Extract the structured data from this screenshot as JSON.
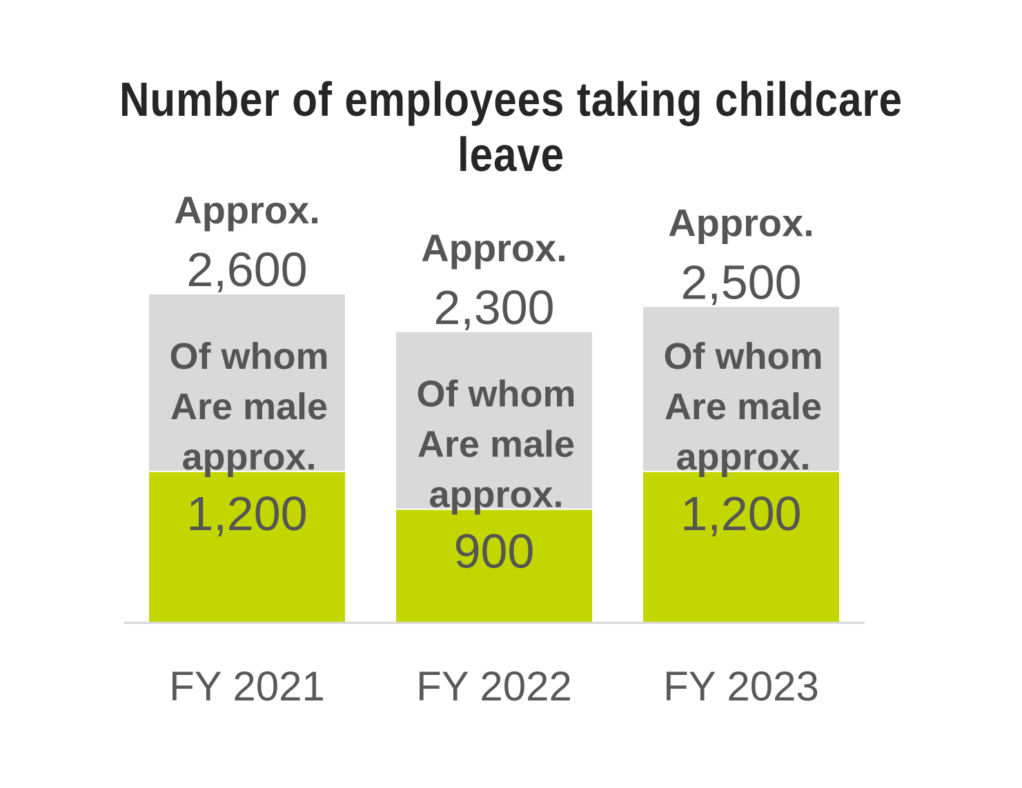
{
  "chart_data": {
    "type": "bar",
    "stacked": true,
    "title": "Number of employees taking childcare leave",
    "xlabel": "",
    "ylabel": "",
    "ylim": [
      0,
      2600
    ],
    "grid": false,
    "legend": "none",
    "categories": [
      "FY 2021",
      "FY 2022",
      "FY 2023"
    ],
    "totals": [
      2600,
      2300,
      2500
    ],
    "total_labels": [
      {
        "prefix": "Approx.",
        "value": "2,600"
      },
      {
        "prefix": "Approx.",
        "value": "2,300"
      },
      {
        "prefix": "Approx.",
        "value": "2,500"
      }
    ],
    "series": [
      {
        "key": "male",
        "values": [
          1200,
          900,
          1200
        ],
        "color": "#c3d600"
      },
      {
        "key": "other",
        "values": [
          1400,
          1400,
          1300
        ],
        "color": "#d9d9d9"
      }
    ],
    "male_caption": [
      "Of whom",
      "Are male",
      "approx."
    ],
    "male_labels": [
      "1,200",
      "900",
      "1,200"
    ],
    "colors": {
      "text": "#555555",
      "title": "#262626",
      "baseline": "#d9d9d9",
      "category_text": "#595959"
    }
  }
}
